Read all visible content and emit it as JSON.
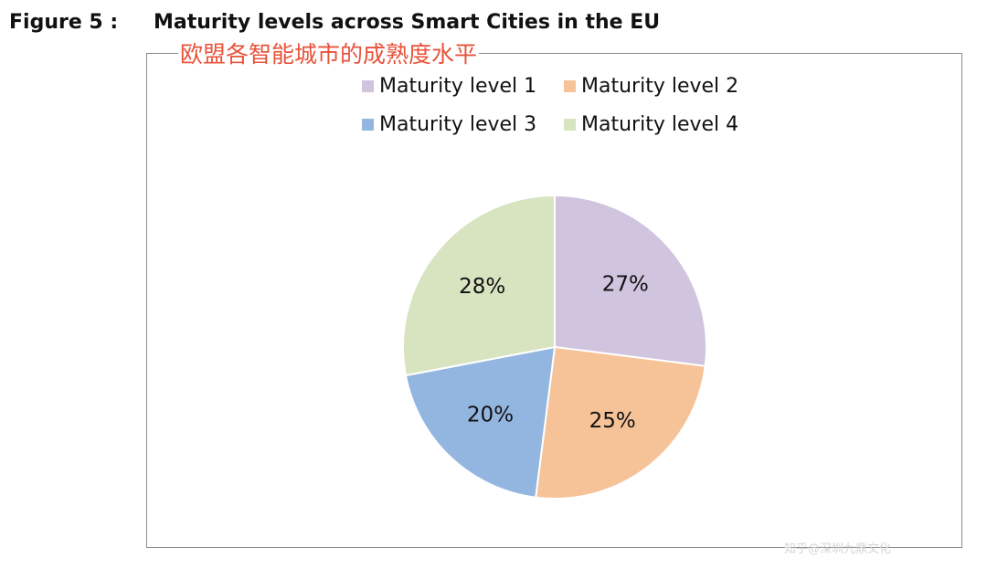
{
  "figure": {
    "label": "Figure 5 :",
    "title": "Maturity levels across Smart Cities in the EU",
    "caption_cn": "欧盟各智能城市的成熟度水平"
  },
  "watermark": "知乎@深圳九鼎文化",
  "chart_data": {
    "type": "pie",
    "title": "Maturity levels across Smart Cities in the EU",
    "start_angle_deg": 0,
    "direction": "clockwise",
    "legend_position": "top",
    "slices": [
      {
        "name": "Maturity level 1",
        "value": 27,
        "label": "27%",
        "color": "#d0c4de"
      },
      {
        "name": "Maturity level 2",
        "value": 25,
        "label": "25%",
        "color": "#f6c298"
      },
      {
        "name": "Maturity level 3",
        "value": 20,
        "label": "20%",
        "color": "#93b6e0"
      },
      {
        "name": "Maturity level 4",
        "value": 28,
        "label": "28%",
        "color": "#d8e4c0"
      }
    ]
  }
}
